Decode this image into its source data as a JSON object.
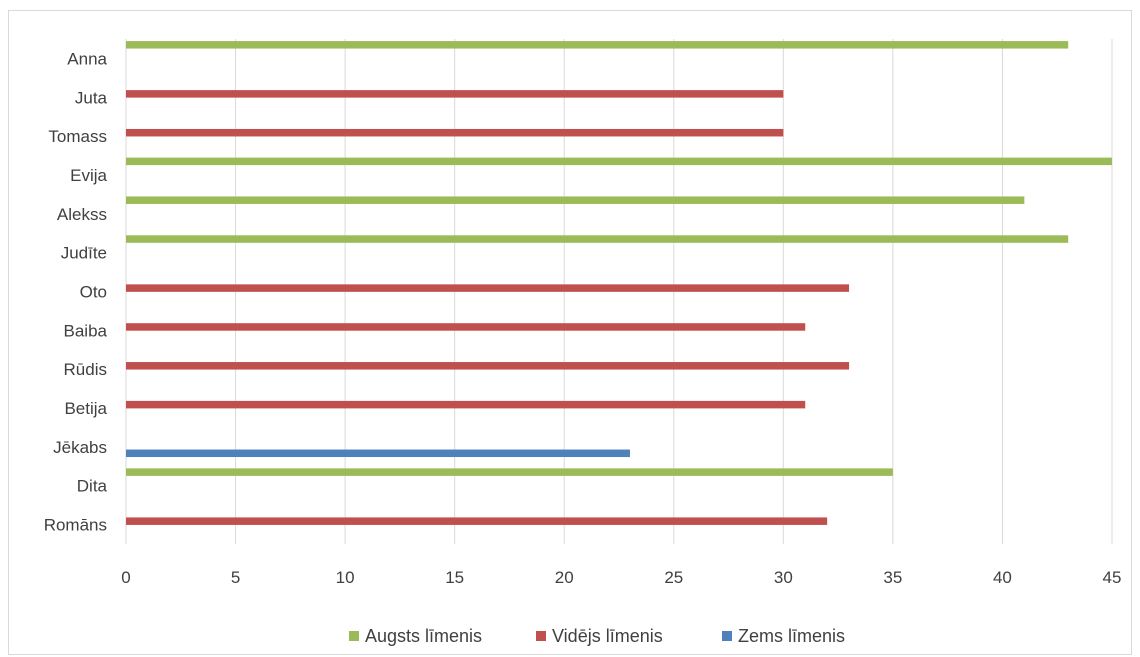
{
  "chart_data": {
    "type": "bar",
    "orientation": "horizontal",
    "title": "",
    "xlabel": "",
    "ylabel": "",
    "xlim": [
      0,
      45
    ],
    "x_ticks": [
      0,
      5,
      10,
      15,
      20,
      25,
      30,
      35,
      40,
      45
    ],
    "grid": "vertical",
    "legend_position": "bottom",
    "categories": [
      "Anna",
      "Juta",
      "Tomass",
      "Evija",
      "Alekss",
      "Judīte",
      "Oto",
      "Baiba",
      "Rūdis",
      "Betija",
      "Jēkabs",
      "Dita",
      "Romāns"
    ],
    "series": [
      {
        "name": "Augsts līmenis",
        "color": "#9bbb59",
        "values": [
          43,
          null,
          null,
          45,
          41,
          43,
          null,
          null,
          null,
          null,
          null,
          35,
          null
        ]
      },
      {
        "name": "Vidējs līmenis",
        "color": "#c0504d",
        "values": [
          null,
          30,
          30,
          null,
          null,
          null,
          33,
          31,
          33,
          31,
          null,
          null,
          32
        ]
      },
      {
        "name": "Zems līmenis",
        "color": "#4f81bd",
        "values": [
          null,
          null,
          null,
          null,
          null,
          null,
          null,
          null,
          null,
          null,
          23,
          null,
          null
        ]
      }
    ]
  }
}
